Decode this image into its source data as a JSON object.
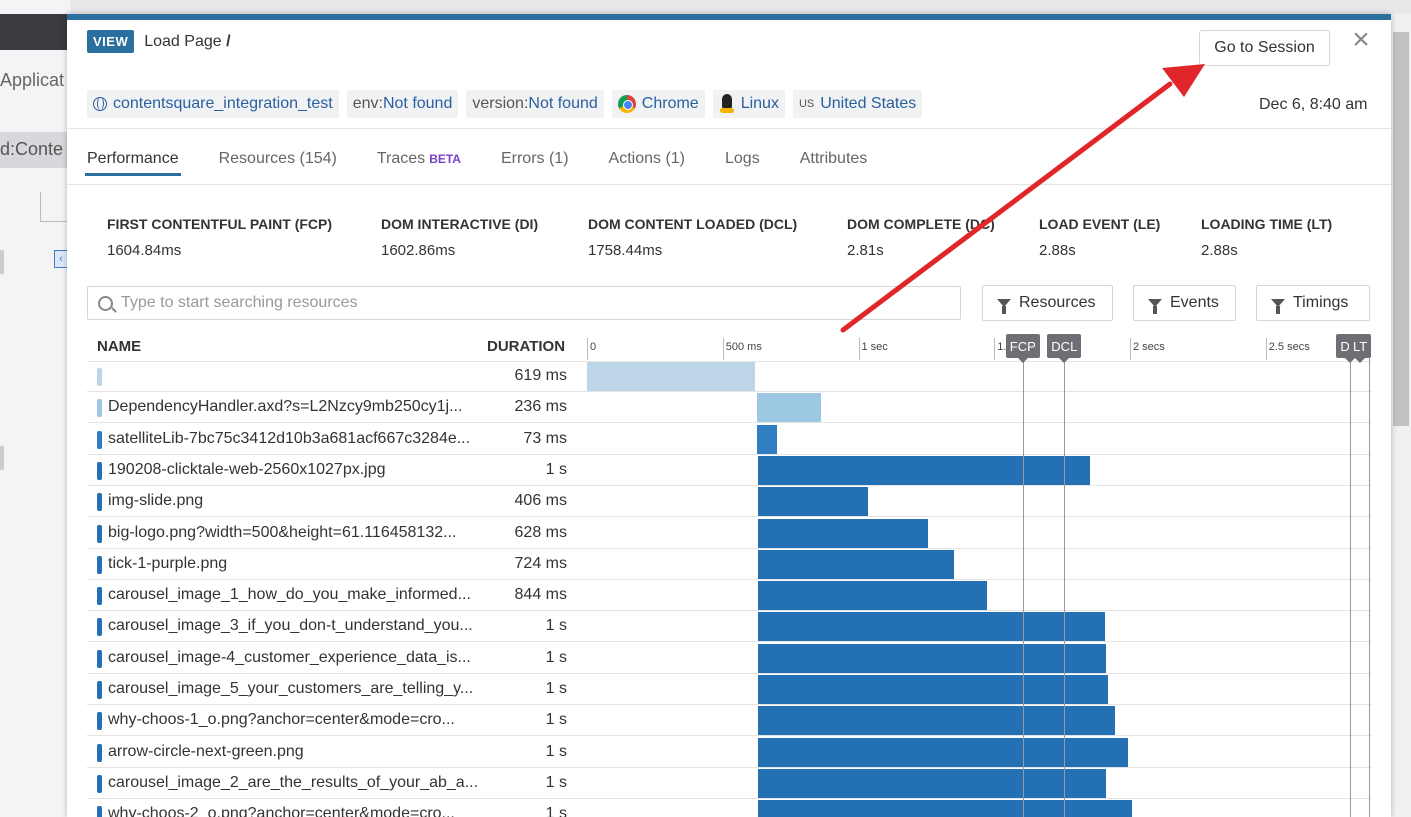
{
  "background": {
    "app_label": "Applicat",
    "query_fragment": "d:Conte"
  },
  "header": {
    "badge": "VIEW",
    "title_prefix": "Load Page",
    "title_path": "/",
    "goto_session": "Go to Session",
    "close": "×",
    "timestamp": "Dec 6, 8:40 am"
  },
  "tags": {
    "app": "contentsquare_integration_test",
    "env_key": "env:",
    "env_val": "Not found",
    "version_key": "version:",
    "version_val": "Not found",
    "browser": "Chrome",
    "os": "Linux",
    "country_code": "US",
    "country": "United States"
  },
  "tabs": [
    {
      "label": "Performance",
      "active": true
    },
    {
      "label": "Resources (154)"
    },
    {
      "label": "Traces",
      "badge": "BETA"
    },
    {
      "label": "Errors (1)"
    },
    {
      "label": "Actions (1)"
    },
    {
      "label": "Logs"
    },
    {
      "label": "Attributes"
    }
  ],
  "metrics": [
    {
      "label": "FIRST CONTENTFUL PAINT (FCP)",
      "value": "1604.84ms"
    },
    {
      "label": "DOM INTERACTIVE (DI)",
      "value": "1602.86ms"
    },
    {
      "label": "DOM CONTENT LOADED (DCL)",
      "value": "1758.44ms"
    },
    {
      "label": "DOM COMPLETE (DC)",
      "value": "2.81s"
    },
    {
      "label": "LOAD EVENT (LE)",
      "value": "2.88s"
    },
    {
      "label": "LOADING TIME (LT)",
      "value": "2.88s"
    }
  ],
  "search": {
    "placeholder": "Type to start searching resources"
  },
  "filters": {
    "resources": "Resources",
    "events": "Events",
    "timings": "Timings"
  },
  "table": {
    "col_name": "NAME",
    "col_duration": "DURATION",
    "axis": [
      {
        "label": "0",
        "ms": 0
      },
      {
        "label": "500 ms",
        "ms": 500
      },
      {
        "label": "1 sec",
        "ms": 1000
      },
      {
        "label": "1.5 sec",
        "ms": 1500
      },
      {
        "label": "2 secs",
        "ms": 2000
      },
      {
        "label": "2.5 secs",
        "ms": 2500
      }
    ],
    "markers": [
      {
        "label": "FCP",
        "ms": 1605
      },
      {
        "label": "DCL",
        "ms": 1758
      },
      {
        "label": "DC",
        "ms": 2810
      },
      {
        "label": "LT",
        "ms": 2880
      }
    ],
    "rows": [
      {
        "name": "",
        "duration": "619 ms",
        "start_ms": 0,
        "dur_ms": 619,
        "color": "#bcd6e8"
      },
      {
        "name": "DependencyHandler.axd?s=L2Nzcy9mb250cy1j...",
        "duration": "236 ms",
        "start_ms": 625,
        "dur_ms": 236,
        "color": "#9cc8e4"
      },
      {
        "name": "satelliteLib-7bc75c3412d10b3a681acf667c3284e...",
        "duration": "73 ms",
        "start_ms": 625,
        "dur_ms": 73,
        "color": "#2f7ec1"
      },
      {
        "name": "190208-clicktale-web-2560x1027px.jpg",
        "duration": "1 s",
        "start_ms": 628,
        "dur_ms": 1224,
        "color": "#2470b5"
      },
      {
        "name": "img-slide.png",
        "duration": "406 ms",
        "start_ms": 628,
        "dur_ms": 406,
        "color": "#2470b5"
      },
      {
        "name": "big-logo.png?width=500&height=61.116458132...",
        "duration": "628 ms",
        "start_ms": 628,
        "dur_ms": 628,
        "color": "#2470b5"
      },
      {
        "name": "tick-1-purple.png",
        "duration": "724 ms",
        "start_ms": 628,
        "dur_ms": 724,
        "color": "#2470b5"
      },
      {
        "name": "carousel_image_1_how_do_you_make_informed...",
        "duration": "844 ms",
        "start_ms": 628,
        "dur_ms": 844,
        "color": "#2470b5"
      },
      {
        "name": "carousel_image_3_if_you_don-t_understand_you...",
        "duration": "1 s",
        "start_ms": 628,
        "dur_ms": 1280,
        "color": "#2470b5"
      },
      {
        "name": "carousel_image-4_customer_experience_data_is...",
        "duration": "1 s",
        "start_ms": 628,
        "dur_ms": 1284,
        "color": "#2470b5"
      },
      {
        "name": "carousel_image_5_your_customers_are_telling_y...",
        "duration": "1 s",
        "start_ms": 628,
        "dur_ms": 1290,
        "color": "#2470b5"
      },
      {
        "name": "why-choos-1_o.png?anchor=center&mode=cro...",
        "duration": "1 s",
        "start_ms": 628,
        "dur_ms": 1316,
        "color": "#2470b5"
      },
      {
        "name": "arrow-circle-next-green.png",
        "duration": "1 s",
        "start_ms": 628,
        "dur_ms": 1366,
        "color": "#2470b5"
      },
      {
        "name": "carousel_image_2_are_the_results_of_your_ab_a...",
        "duration": "1 s",
        "start_ms": 628,
        "dur_ms": 1284,
        "color": "#2470b5"
      },
      {
        "name": "why-choos-2_o.png?anchor=center&mode=cro...",
        "duration": "1 s",
        "start_ms": 628,
        "dur_ms": 1380,
        "color": "#2470b5"
      }
    ]
  },
  "colors": {
    "accent": "#2a6f9e",
    "annotation_arrow": "#e0262b"
  }
}
